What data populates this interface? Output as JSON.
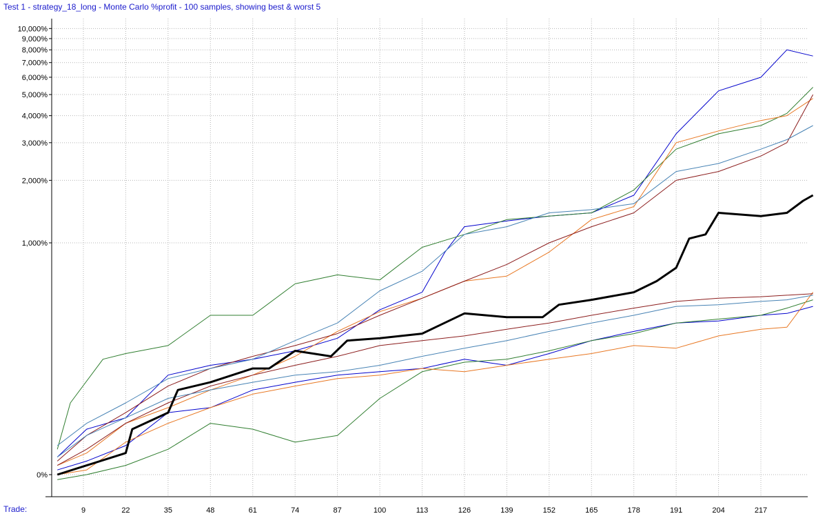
{
  "title": "Test 1 - strategy_18_long - Monte Carlo %profit - 100 samples, showing best & worst 5",
  "chart_data": {
    "type": "line",
    "title": "Test 1 - strategy_18_long - Monte Carlo %profit - 100 samples, showing best & worst 5",
    "xlabel": "Trade:",
    "ylabel": "",
    "y_scale": "log (1 + %profit)",
    "grid": true,
    "legend": "none",
    "x_ticks": [
      9,
      22,
      35,
      48,
      61,
      74,
      87,
      100,
      113,
      126,
      139,
      152,
      165,
      178,
      191,
      204,
      217
    ],
    "y_ticks": [
      "0%",
      "1,000%",
      "2,000%",
      "3,000%",
      "4,000%",
      "5,000%",
      "6,000%",
      "7,000%",
      "8,000%",
      "9,000%",
      "10,000%"
    ],
    "y_tick_values": [
      0,
      1000,
      2000,
      3000,
      4000,
      5000,
      6000,
      7000,
      8000,
      9000,
      10000
    ],
    "xlim": [
      0,
      234
    ],
    "series": [
      {
        "color": "#000000",
        "bold": true,
        "points": [
          [
            1,
            0
          ],
          [
            10,
            10
          ],
          [
            22,
            25
          ],
          [
            24,
            60
          ],
          [
            35,
            90
          ],
          [
            38,
            140
          ],
          [
            48,
            160
          ],
          [
            61,
            200
          ],
          [
            66,
            200
          ],
          [
            74,
            260
          ],
          [
            85,
            240
          ],
          [
            90,
            300
          ],
          [
            100,
            310
          ],
          [
            113,
            330
          ],
          [
            126,
            430
          ],
          [
            139,
            410
          ],
          [
            150,
            410
          ],
          [
            155,
            480
          ],
          [
            165,
            510
          ],
          [
            178,
            560
          ],
          [
            185,
            640
          ],
          [
            191,
            750
          ],
          [
            195,
            1050
          ],
          [
            200,
            1100
          ],
          [
            204,
            1400
          ],
          [
            217,
            1350
          ],
          [
            225,
            1400
          ],
          [
            230,
            1600
          ],
          [
            233,
            1700
          ]
        ]
      },
      {
        "color": "#0000cc",
        "points": [
          [
            1,
            20
          ],
          [
            10,
            60
          ],
          [
            22,
            80
          ],
          [
            35,
            180
          ],
          [
            48,
            210
          ],
          [
            61,
            230
          ],
          [
            74,
            260
          ],
          [
            87,
            310
          ],
          [
            100,
            450
          ],
          [
            113,
            560
          ],
          [
            120,
            900
          ],
          [
            126,
            1200
          ],
          [
            139,
            1280
          ],
          [
            152,
            1350
          ],
          [
            165,
            1400
          ],
          [
            178,
            1700
          ],
          [
            191,
            3300
          ],
          [
            204,
            5200
          ],
          [
            217,
            6000
          ],
          [
            225,
            8000
          ],
          [
            233,
            7500
          ]
        ]
      },
      {
        "color": "#2e7d2e",
        "points": [
          [
            1,
            30
          ],
          [
            5,
            110
          ],
          [
            15,
            230
          ],
          [
            22,
            250
          ],
          [
            35,
            280
          ],
          [
            48,
            420
          ],
          [
            61,
            420
          ],
          [
            74,
            620
          ],
          [
            87,
            690
          ],
          [
            100,
            650
          ],
          [
            113,
            950
          ],
          [
            126,
            1100
          ],
          [
            139,
            1300
          ],
          [
            152,
            1350
          ],
          [
            165,
            1400
          ],
          [
            178,
            1800
          ],
          [
            191,
            2800
          ],
          [
            204,
            3300
          ],
          [
            217,
            3600
          ],
          [
            225,
            4100
          ],
          [
            233,
            5400
          ]
        ]
      },
      {
        "color": "#e87722",
        "points": [
          [
            1,
            10
          ],
          [
            10,
            25
          ],
          [
            22,
            70
          ],
          [
            35,
            100
          ],
          [
            48,
            140
          ],
          [
            61,
            180
          ],
          [
            74,
            240
          ],
          [
            87,
            340
          ],
          [
            100,
            440
          ],
          [
            113,
            520
          ],
          [
            126,
            640
          ],
          [
            139,
            680
          ],
          [
            152,
            900
          ],
          [
            165,
            1300
          ],
          [
            178,
            1500
          ],
          [
            191,
            3000
          ],
          [
            204,
            3400
          ],
          [
            217,
            3800
          ],
          [
            225,
            4000
          ],
          [
            233,
            4800
          ]
        ]
      },
      {
        "color": "#8b1c1c",
        "points": [
          [
            1,
            15
          ],
          [
            10,
            50
          ],
          [
            22,
            90
          ],
          [
            35,
            150
          ],
          [
            48,
            200
          ],
          [
            61,
            240
          ],
          [
            74,
            280
          ],
          [
            87,
            330
          ],
          [
            100,
            420
          ],
          [
            113,
            520
          ],
          [
            126,
            640
          ],
          [
            139,
            780
          ],
          [
            152,
            1000
          ],
          [
            165,
            1200
          ],
          [
            178,
            1400
          ],
          [
            191,
            2000
          ],
          [
            204,
            2200
          ],
          [
            217,
            2600
          ],
          [
            225,
            3000
          ],
          [
            233,
            5000
          ]
        ]
      },
      {
        "color": "#4682b4",
        "points": [
          [
            1,
            35
          ],
          [
            10,
            70
          ],
          [
            22,
            110
          ],
          [
            35,
            170
          ],
          [
            48,
            200
          ],
          [
            61,
            230
          ],
          [
            74,
            300
          ],
          [
            87,
            380
          ],
          [
            100,
            570
          ],
          [
            113,
            720
          ],
          [
            126,
            1100
          ],
          [
            139,
            1200
          ],
          [
            152,
            1400
          ],
          [
            165,
            1450
          ],
          [
            178,
            1550
          ],
          [
            191,
            2200
          ],
          [
            204,
            2400
          ],
          [
            217,
            2800
          ],
          [
            225,
            3100
          ],
          [
            233,
            3600
          ]
        ]
      },
      {
        "color": "#0000cc",
        "points": [
          [
            1,
            5
          ],
          [
            10,
            15
          ],
          [
            22,
            35
          ],
          [
            35,
            90
          ],
          [
            48,
            100
          ],
          [
            61,
            140
          ],
          [
            74,
            160
          ],
          [
            87,
            180
          ],
          [
            100,
            190
          ],
          [
            113,
            200
          ],
          [
            126,
            230
          ],
          [
            139,
            210
          ],
          [
            152,
            250
          ],
          [
            165,
            300
          ],
          [
            178,
            340
          ],
          [
            191,
            380
          ],
          [
            204,
            390
          ],
          [
            217,
            420
          ],
          [
            225,
            430
          ],
          [
            233,
            470
          ]
        ]
      },
      {
        "color": "#2e7d2e",
        "points": [
          [
            1,
            -5
          ],
          [
            10,
            0
          ],
          [
            22,
            10
          ],
          [
            35,
            30
          ],
          [
            48,
            70
          ],
          [
            61,
            60
          ],
          [
            74,
            40
          ],
          [
            87,
            50
          ],
          [
            100,
            120
          ],
          [
            113,
            190
          ],
          [
            126,
            220
          ],
          [
            139,
            230
          ],
          [
            152,
            260
          ],
          [
            165,
            300
          ],
          [
            178,
            330
          ],
          [
            191,
            380
          ],
          [
            204,
            400
          ],
          [
            217,
            420
          ],
          [
            225,
            460
          ],
          [
            233,
            510
          ]
        ]
      },
      {
        "color": "#e87722",
        "points": [
          [
            1,
            0
          ],
          [
            10,
            5
          ],
          [
            22,
            40
          ],
          [
            35,
            70
          ],
          [
            48,
            100
          ],
          [
            61,
            130
          ],
          [
            74,
            150
          ],
          [
            87,
            170
          ],
          [
            100,
            180
          ],
          [
            113,
            200
          ],
          [
            126,
            190
          ],
          [
            139,
            210
          ],
          [
            152,
            230
          ],
          [
            165,
            250
          ],
          [
            178,
            280
          ],
          [
            191,
            270
          ],
          [
            204,
            320
          ],
          [
            217,
            350
          ],
          [
            225,
            360
          ],
          [
            233,
            560
          ]
        ]
      },
      {
        "color": "#8b1c1c",
        "points": [
          [
            1,
            10
          ],
          [
            10,
            30
          ],
          [
            22,
            70
          ],
          [
            35,
            110
          ],
          [
            48,
            150
          ],
          [
            61,
            180
          ],
          [
            74,
            210
          ],
          [
            87,
            240
          ],
          [
            100,
            280
          ],
          [
            113,
            300
          ],
          [
            126,
            320
          ],
          [
            139,
            350
          ],
          [
            152,
            380
          ],
          [
            165,
            420
          ],
          [
            178,
            460
          ],
          [
            191,
            500
          ],
          [
            204,
            520
          ],
          [
            217,
            530
          ],
          [
            225,
            540
          ],
          [
            233,
            550
          ]
        ]
      },
      {
        "color": "#4682b4",
        "points": [
          [
            1,
            20
          ],
          [
            10,
            50
          ],
          [
            22,
            80
          ],
          [
            35,
            120
          ],
          [
            48,
            140
          ],
          [
            61,
            160
          ],
          [
            74,
            180
          ],
          [
            87,
            190
          ],
          [
            100,
            210
          ],
          [
            113,
            240
          ],
          [
            126,
            270
          ],
          [
            139,
            300
          ],
          [
            152,
            340
          ],
          [
            165,
            380
          ],
          [
            178,
            420
          ],
          [
            191,
            470
          ],
          [
            204,
            480
          ],
          [
            217,
            500
          ],
          [
            225,
            510
          ],
          [
            233,
            540
          ]
        ]
      }
    ]
  }
}
